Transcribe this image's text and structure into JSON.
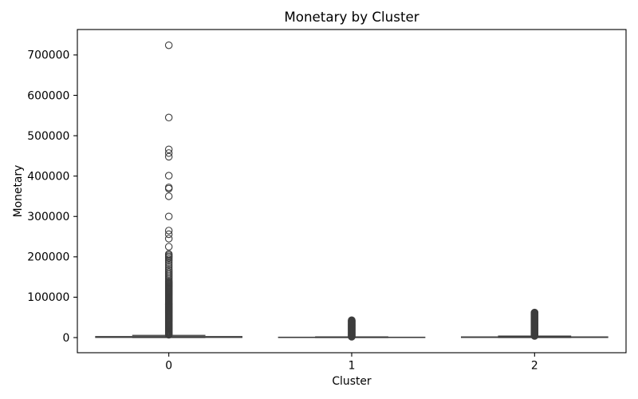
{
  "chart_data": {
    "type": "box",
    "title": "Monetary by Cluster",
    "xlabel": "Cluster",
    "ylabel": "Monetary",
    "categories": [
      "0",
      "1",
      "2"
    ],
    "yticks": [
      0,
      100000,
      200000,
      300000,
      400000,
      500000,
      600000,
      700000
    ],
    "ylim": [
      -37500,
      763000
    ],
    "grid": false,
    "colors": {
      "box_edge": "#3d3d3d",
      "box_fill": "#3d3d3d",
      "flier_edge": "#3d3d3d"
    },
    "boxes": [
      {
        "category": "0",
        "whislo": 0,
        "q1": 400,
        "median": 1000,
        "q3": 2500,
        "whishi": 5600,
        "fliers": [
          7000,
          9000,
          11000,
          13000,
          15000,
          17000,
          19000,
          21000,
          23000,
          25000,
          27000,
          29000,
          31000,
          33000,
          35000,
          37000,
          39000,
          41000,
          43000,
          45000,
          47000,
          49000,
          51000,
          53000,
          55000,
          57000,
          59000,
          61000,
          63000,
          65000,
          67000,
          69000,
          71000,
          73000,
          75000,
          77000,
          79000,
          81000,
          83000,
          85000,
          87000,
          89000,
          91000,
          93000,
          95000,
          97000,
          99000,
          101000,
          103000,
          105000,
          107000,
          109000,
          111000,
          113000,
          115000,
          117000,
          119000,
          121000,
          123000,
          125000,
          127000,
          129000,
          131000,
          133000,
          135000,
          137000,
          139000,
          142000,
          146000,
          150000,
          154000,
          158000,
          162000,
          166000,
          170000,
          175000,
          180000,
          185000,
          190000,
          194000,
          198000,
          201000,
          204000,
          207000,
          225000,
          245000,
          256000,
          265000,
          300000,
          350000,
          369000,
          372000,
          401000,
          448000,
          457000,
          466000,
          545000,
          724000
        ]
      },
      {
        "category": "1",
        "whislo": 0,
        "q1": 200,
        "median": 450,
        "q3": 900,
        "whishi": 1900,
        "fliers": [
          2000,
          3000,
          4000,
          5000,
          6000,
          7000,
          8000,
          9000,
          10000,
          11000,
          12000,
          13000,
          14000,
          15000,
          16000,
          17000,
          18000,
          19000,
          20000,
          21000,
          22000,
          23000,
          24000,
          25000,
          26000,
          27000,
          28000,
          29000,
          30000,
          31000,
          32000,
          33000,
          34000,
          35000,
          36000,
          37000,
          38000,
          39000,
          40000,
          41000,
          42000,
          43000
        ]
      },
      {
        "category": "2",
        "whislo": 0,
        "q1": 300,
        "median": 750,
        "q3": 1700,
        "whishi": 3800,
        "fliers": [
          4000,
          5000,
          6000,
          7000,
          8000,
          9000,
          10000,
          11000,
          12000,
          13000,
          14000,
          15000,
          16000,
          17000,
          18000,
          19000,
          20000,
          21000,
          22000,
          23000,
          24000,
          25000,
          26000,
          27000,
          28000,
          29000,
          30000,
          31000,
          32000,
          33000,
          34000,
          35000,
          36000,
          37000,
          38000,
          39000,
          40000,
          41000,
          42000,
          43000,
          44000,
          45000,
          46000,
          47000,
          48000,
          49000,
          50000,
          51000,
          52000,
          53000,
          54000,
          55000,
          56000,
          57000,
          58000,
          59000,
          60000,
          61000,
          62000
        ]
      }
    ]
  }
}
